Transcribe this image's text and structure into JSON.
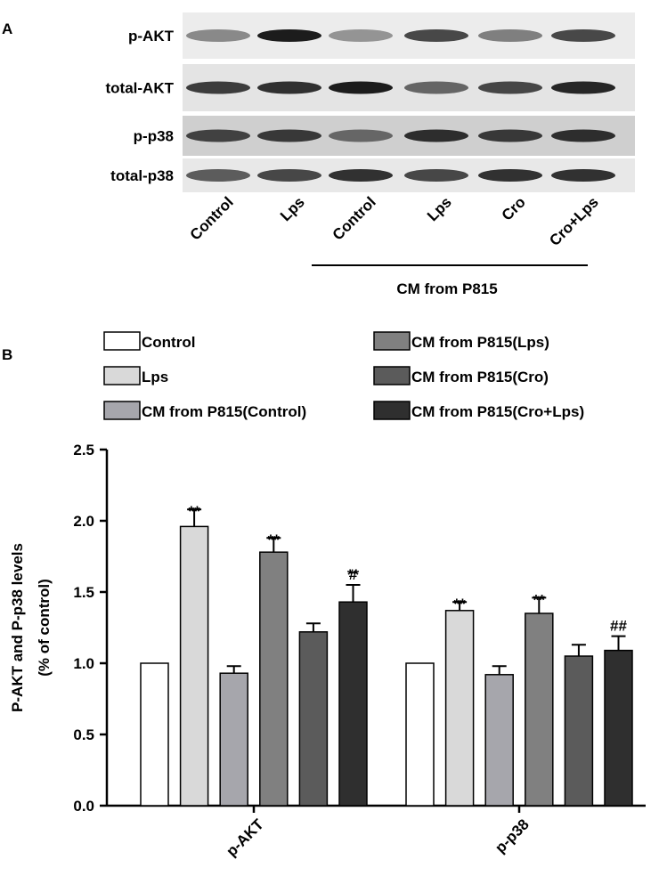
{
  "panel_a": {
    "label": "A",
    "rows": [
      "p-AKT",
      "total-AKT",
      "p-p38",
      "total-p38"
    ],
    "lanes": [
      "Control",
      "Lps",
      "Control",
      "Lps",
      "Cro",
      "Cro+Lps"
    ],
    "group_label": "CM from P815"
  },
  "chart_data": {
    "type": "bar",
    "panel_label": "B",
    "ylabel": [
      "P-AKT and P-p38 levels",
      "(% of control)"
    ],
    "categories": [
      "p-AKT",
      "p-p38"
    ],
    "series": [
      {
        "name": "Control",
        "color": "#ffffff",
        "values": [
          1.0,
          1.0
        ],
        "errors": [
          0,
          0
        ],
        "annotations": [
          [],
          []
        ]
      },
      {
        "name": "Lps",
        "color": "#d9d9d9",
        "values": [
          1.96,
          1.37
        ],
        "errors": [
          0.12,
          0.06
        ],
        "annotations": [
          [
            "**"
          ],
          [
            "**"
          ]
        ]
      },
      {
        "name": "CM from P815(Control)",
        "color": "#a6a6ac",
        "values": [
          0.93,
          0.92
        ],
        "errors": [
          0.05,
          0.06
        ],
        "annotations": [
          [],
          []
        ]
      },
      {
        "name": "CM from P815(Lps)",
        "color": "#808080",
        "values": [
          1.78,
          1.35
        ],
        "errors": [
          0.1,
          0.11
        ],
        "annotations": [
          [
            "**"
          ],
          [
            "**"
          ]
        ]
      },
      {
        "name": "CM from P815(Cro)",
        "color": "#5b5b5b",
        "values": [
          1.22,
          1.05
        ],
        "errors": [
          0.06,
          0.08
        ],
        "annotations": [
          [],
          []
        ]
      },
      {
        "name": "CM from P815(Cro+Lps)",
        "color": "#2f2f2f",
        "values": [
          1.43,
          1.09
        ],
        "errors": [
          0.12,
          0.1
        ],
        "annotations": [
          [
            "#",
            "**"
          ],
          [
            "##"
          ]
        ]
      }
    ],
    "ylim": [
      0,
      2.5
    ],
    "yticks": [
      {
        "value": 0,
        "label": "0.0"
      },
      0.5,
      {
        "value": 1,
        "label": "1.0"
      },
      1.5,
      {
        "value": 2,
        "label": "2.0"
      },
      2.5
    ]
  }
}
